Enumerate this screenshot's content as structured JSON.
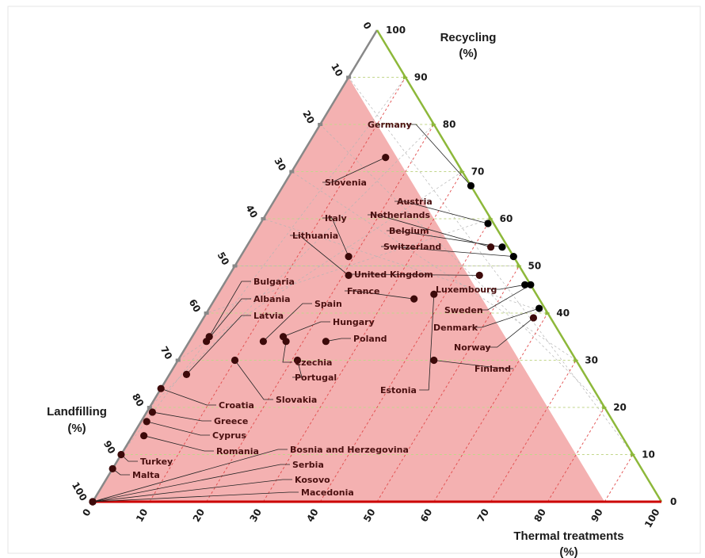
{
  "chart_data": {
    "type": "scatter",
    "subtype": "ternary",
    "axes": {
      "recycling": {
        "label_line1": "Recycling",
        "label_line2": "(%)",
        "color": "#8db83a"
      },
      "landfilling": {
        "label_line1": "Landfilling",
        "label_line2": "(%)",
        "color": "#888888"
      },
      "thermal": {
        "label_line1": "Thermal treatments",
        "label_line2": "(%)",
        "color": "#cc0000"
      }
    },
    "ticks": [
      0,
      10,
      20,
      30,
      40,
      50,
      60,
      70,
      80,
      90,
      100
    ],
    "region": {
      "description": "landfilling > 0 and thermal treatments < 90 and recycling < 90",
      "max_thermal": 90,
      "max_recycling": 90,
      "color": "#f4b1b1"
    },
    "grid": true,
    "colors": {
      "point": "#000000",
      "point_in_region": "#3d0a0a",
      "region": "#f4b1b1",
      "grid_red": "#e14b4b",
      "grid_green": "#c2d68a",
      "grid_grey": "#b5b5b5"
    },
    "points": [
      {
        "country": "Germany",
        "recycling": 67,
        "thermal": 33,
        "landfilling": 0
      },
      {
        "country": "Slovenia",
        "recycling": 73,
        "thermal": 15,
        "landfilling": 12
      },
      {
        "country": "Austria",
        "recycling": 59,
        "thermal": 40,
        "landfilling": 1
      },
      {
        "country": "Netherlands",
        "recycling": 54,
        "thermal": 43,
        "landfilling": 3
      },
      {
        "country": "Belgium",
        "recycling": 54,
        "thermal": 45,
        "landfilling": 1
      },
      {
        "country": "Switzerland",
        "recycling": 52,
        "thermal": 48,
        "landfilling": 0
      },
      {
        "country": "Italy",
        "recycling": 52,
        "thermal": 19,
        "landfilling": 29
      },
      {
        "country": "Lithuania",
        "recycling": 48,
        "thermal": 21,
        "landfilling": 31
      },
      {
        "country": "United Kingdom",
        "recycling": 48,
        "thermal": 44,
        "landfilling": 8
      },
      {
        "country": "Luxembourg",
        "recycling": 46,
        "thermal": 53,
        "landfilling": 1
      },
      {
        "country": "Sweden",
        "recycling": 46,
        "thermal": 54,
        "landfilling": 0
      },
      {
        "country": "France",
        "recycling": 43,
        "thermal": 35,
        "landfilling": 22
      },
      {
        "country": "Estonia",
        "recycling": 44,
        "thermal": 38,
        "landfilling": 18
      },
      {
        "country": "Denmark",
        "recycling": 41,
        "thermal": 58,
        "landfilling": 1
      },
      {
        "country": "Norway",
        "recycling": 39,
        "thermal": 58,
        "landfilling": 3
      },
      {
        "country": "Finland",
        "recycling": 30,
        "thermal": 45,
        "landfilling": 25
      },
      {
        "country": "Bulgaria",
        "recycling": 35,
        "thermal": 3,
        "landfilling": 62
      },
      {
        "country": "Albania",
        "recycling": 34,
        "thermal": 3,
        "landfilling": 63
      },
      {
        "country": "Latvia",
        "recycling": 27,
        "thermal": 3,
        "landfilling": 70
      },
      {
        "country": "Spain",
        "recycling": 34,
        "thermal": 13,
        "landfilling": 53
      },
      {
        "country": "Hungary",
        "recycling": 35,
        "thermal": 16,
        "landfilling": 49
      },
      {
        "country": "Poland",
        "recycling": 34,
        "thermal": 24,
        "landfilling": 42
      },
      {
        "country": "Czechia",
        "recycling": 34,
        "thermal": 17,
        "landfilling": 49
      },
      {
        "country": "Portugal",
        "recycling": 30,
        "thermal": 21,
        "landfilling": 49
      },
      {
        "country": "Slovakia",
        "recycling": 30,
        "thermal": 10,
        "landfilling": 60
      },
      {
        "country": "Croatia",
        "recycling": 24,
        "thermal": 0,
        "landfilling": 76
      },
      {
        "country": "Greece",
        "recycling": 19,
        "thermal": 1,
        "landfilling": 80
      },
      {
        "country": "Cyprus",
        "recycling": 17,
        "thermal": 1,
        "landfilling": 82
      },
      {
        "country": "Romania",
        "recycling": 14,
        "thermal": 2,
        "landfilling": 84
      },
      {
        "country": "Turkey",
        "recycling": 10,
        "thermal": 0,
        "landfilling": 90
      },
      {
        "country": "Malta",
        "recycling": 7,
        "thermal": 0,
        "landfilling": 93
      },
      {
        "country": "Bosnia and Herzegovina",
        "recycling": 0,
        "thermal": 0,
        "landfilling": 100
      },
      {
        "country": "Serbia",
        "recycling": 0,
        "thermal": 0,
        "landfilling": 100
      },
      {
        "country": "Kosovo",
        "recycling": 0,
        "thermal": 0,
        "landfilling": 100
      },
      {
        "country": "Macedonia",
        "recycling": 0,
        "thermal": 0,
        "landfilling": 100
      }
    ]
  }
}
